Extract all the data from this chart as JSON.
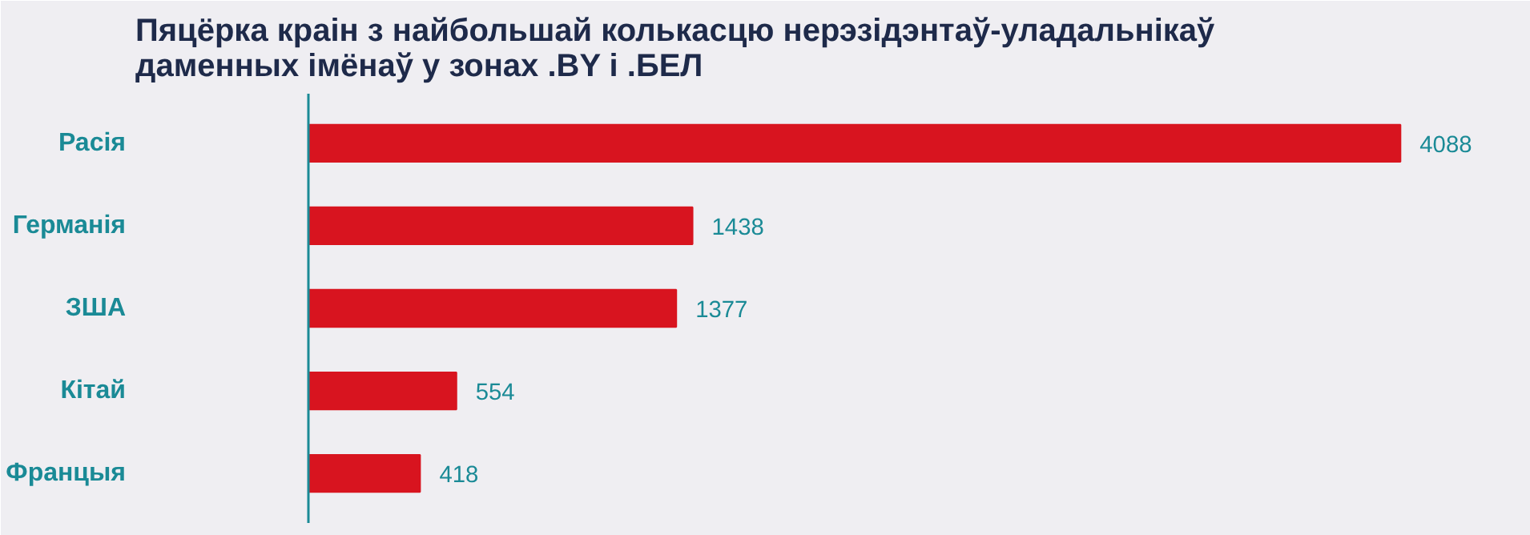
{
  "chart_data": {
    "type": "bar",
    "orientation": "horizontal",
    "title": "Пяцёрка краін з найбольшай колькасцю нерэзідэнтаў-уладальнікаў даменных імёнаў у зонах .BY і .БЕЛ",
    "categories": [
      "Расія",
      "Германія",
      "ЗША",
      "Кітай",
      "Францыя"
    ],
    "values": [
      4088,
      1438,
      1377,
      554,
      418
    ],
    "color": "#d8141f",
    "data_labels": true,
    "grid": false
  }
}
